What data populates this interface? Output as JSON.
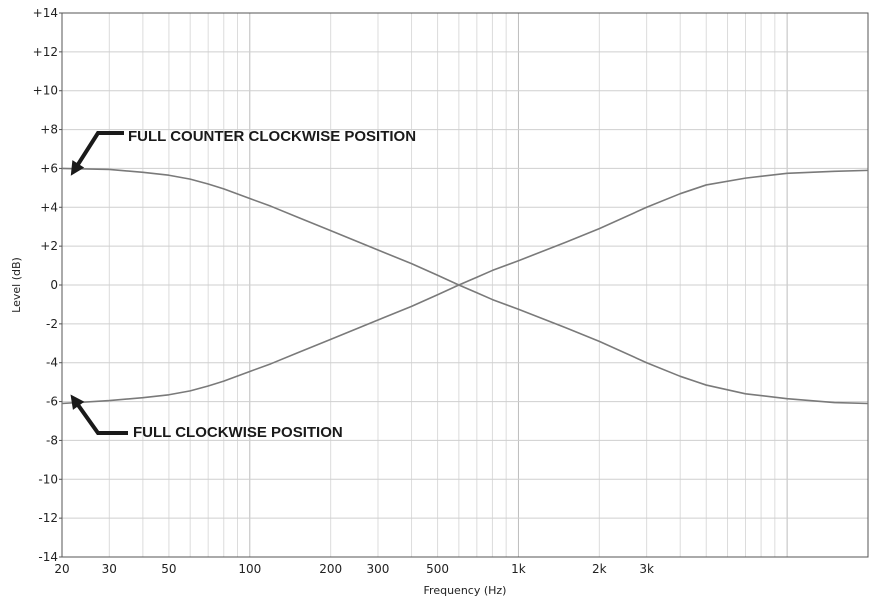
{
  "chart_data": {
    "type": "line",
    "xlabel": "Frequency (Hz)",
    "ylabel": "Level (dB)",
    "xscale": "log",
    "xlim": [
      20,
      20000
    ],
    "ylim": [
      -14,
      14
    ],
    "grid": true,
    "x_ticks": [
      {
        "value": 20,
        "label": "20"
      },
      {
        "value": 30,
        "label": "30"
      },
      {
        "value": 50,
        "label": "50"
      },
      {
        "value": 100,
        "label": "100"
      },
      {
        "value": 200,
        "label": "200"
      },
      {
        "value": 300,
        "label": "300"
      },
      {
        "value": 500,
        "label": "500"
      },
      {
        "value": 1000,
        "label": "1k"
      },
      {
        "value": 2000,
        "label": "2k"
      },
      {
        "value": 3000,
        "label": "3k"
      }
    ],
    "y_ticks": [
      {
        "value": 14,
        "label": "+14"
      },
      {
        "value": 12,
        "label": "+12"
      },
      {
        "value": 10,
        "label": "+10"
      },
      {
        "value": 8,
        "label": "+8"
      },
      {
        "value": 6,
        "label": "+6"
      },
      {
        "value": 4,
        "label": "+4"
      },
      {
        "value": 2,
        "label": "+2"
      },
      {
        "value": 0,
        "label": "0"
      },
      {
        "value": -2,
        "label": "-2"
      },
      {
        "value": -4,
        "label": "-4"
      },
      {
        "value": -6,
        "label": "-6"
      },
      {
        "value": -8,
        "label": "-8"
      },
      {
        "value": -10,
        "label": "-10"
      },
      {
        "value": -12,
        "label": "-12"
      },
      {
        "value": -14,
        "label": "-14"
      }
    ],
    "line_color": "#7a7a7a",
    "series": [
      {
        "x": [
          20,
          30,
          40,
          50,
          60,
          70,
          80,
          100,
          120,
          150,
          200,
          300,
          400,
          500,
          600,
          700,
          800,
          1000,
          1500,
          2000,
          3000,
          4000,
          5000,
          7000,
          10000,
          15000,
          20000
        ],
        "y": [
          6.0,
          5.95,
          5.8,
          5.65,
          5.45,
          5.2,
          4.95,
          4.45,
          4.05,
          3.5,
          2.8,
          1.8,
          1.1,
          0.5,
          0.0,
          -0.4,
          -0.75,
          -1.25,
          -2.2,
          -2.9,
          -4.0,
          -4.7,
          -5.15,
          -5.6,
          -5.85,
          -6.05,
          -6.1
        ]
      },
      {
        "x": [
          20,
          30,
          40,
          50,
          60,
          70,
          80,
          100,
          120,
          150,
          200,
          300,
          400,
          500,
          600,
          700,
          800,
          1000,
          1500,
          2000,
          3000,
          4000,
          5000,
          7000,
          10000,
          15000,
          20000
        ],
        "y": [
          -6.1,
          -5.95,
          -5.8,
          -5.65,
          -5.45,
          -5.2,
          -4.95,
          -4.45,
          -4.05,
          -3.5,
          -2.8,
          -1.8,
          -1.1,
          -0.5,
          0.0,
          0.4,
          0.75,
          1.25,
          2.2,
          2.9,
          4.0,
          4.7,
          5.15,
          5.5,
          5.75,
          5.85,
          5.9
        ]
      }
    ],
    "annotations": [
      {
        "text": "FULL COUNTER CLOCKWISE POSITION",
        "arrow_to": [
          20,
          6.4
        ]
      },
      {
        "text": "FULL CLOCKWISE POSITION",
        "arrow_to": [
          20,
          -6.4
        ]
      }
    ]
  }
}
